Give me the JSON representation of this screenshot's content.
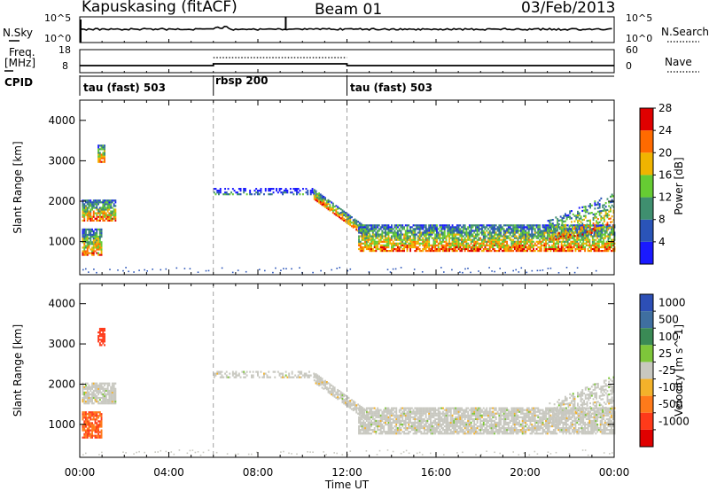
{
  "header": {
    "station": "Kapuskasing (fitACF)",
    "beam": "Beam 01",
    "date": "03/Feb/2013"
  },
  "side_labels": {
    "n_sky": "N.Sky",
    "freq": "Freq.",
    "mhz": "[MHz]",
    "cpid": "CPID",
    "n_search": "N.Search",
    "nave": "Nave"
  },
  "top_panels": {
    "nsky_ticks": [
      "10^5",
      "10^0"
    ],
    "nsearch_ticks": [
      "10^5",
      "10^0"
    ],
    "freq_ticks": [
      "18",
      "8"
    ],
    "nave_ticks": [
      "60",
      "0"
    ]
  },
  "cpid_segments": [
    {
      "label": "tau (fast) 503",
      "start_hour": 0,
      "end_hour": 6
    },
    {
      "label": "rbsp 200",
      "start_hour": 6,
      "end_hour": 12
    },
    {
      "label": "tau (fast) 503",
      "start_hour": 12,
      "end_hour": 24
    }
  ],
  "chart_data": {
    "type": "heatmap",
    "xlabel": "Time UT",
    "x_range_hours": [
      0,
      24
    ],
    "x_ticks": [
      "00:00",
      "04:00",
      "08:00",
      "12:00",
      "16:00",
      "20:00",
      "00:00"
    ],
    "ylabel": "Slant Range [km]",
    "y_range_km": [
      180,
      4500
    ],
    "y_ticks": [
      "1000",
      "2000",
      "3000",
      "4000"
    ],
    "panels": [
      {
        "quantity": "power",
        "colorbar_title": "Power [dB]",
        "colorbar_ticks": [
          "4",
          "8",
          "12",
          "16",
          "20",
          "24",
          "28"
        ],
        "colors": [
          "#1a1aff",
          "#2a54b8",
          "#3f8f6f",
          "#66cc33",
          "#f0b400",
          "#ff6a00",
          "#e00000"
        ]
      },
      {
        "quantity": "velocity",
        "colorbar_title": "Velocity [m s^-1]",
        "colorbar_ticks": [
          "1000",
          "500",
          "100",
          "25",
          "-25",
          "-100",
          "-500",
          "-1000"
        ],
        "colors": [
          "#2d4fb6",
          "#3f6fa0",
          "#3a8a55",
          "#7ec63a",
          "#c8c8c0",
          "#f3b22a",
          "#ff7a1a",
          "#ff3a1a",
          "#e00000"
        ]
      }
    ],
    "mode_change_hours": [
      6,
      12
    ],
    "scatter_regions": [
      {
        "name": "near-range echo A",
        "t_start": 0.1,
        "t_end": 1.0,
        "r_low": 650,
        "r_high": 1300
      },
      {
        "name": "near-range echo B",
        "t_start": 0.1,
        "t_end": 1.6,
        "r_low": 1500,
        "r_high": 2000
      },
      {
        "name": "isolated patch",
        "t_start": 0.8,
        "t_end": 1.1,
        "r_low": 2950,
        "r_high": 3400
      },
      {
        "name": "rbsp band",
        "t_start": 6.0,
        "t_end": 10.5,
        "r_low": 2150,
        "r_high": 2300
      },
      {
        "name": "descending band",
        "t_start": 10.5,
        "t_end": 13.0,
        "r_low": 1000,
        "r_high": 2200
      },
      {
        "name": "afternoon-evening band",
        "t_start": 12.5,
        "t_end": 24.0,
        "r_low": 750,
        "r_high": 1400
      },
      {
        "name": "evening rise",
        "t_start": 21.0,
        "t_end": 24.0,
        "r_low": 1400,
        "r_high": 2300
      }
    ]
  }
}
